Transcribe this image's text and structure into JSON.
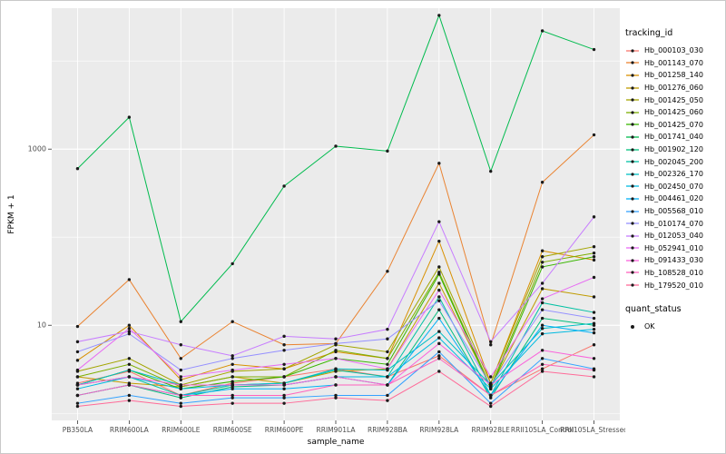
{
  "chart": {
    "legend_title_tracking": "tracking_id",
    "legend_title_quant": "quant_status",
    "quant_status_items": [
      "OK"
    ],
    "quant_point_color": "#1a1a1a"
  },
  "chart_data": {
    "type": "line",
    "title": "",
    "xlabel": "sample_name",
    "ylabel": "FPKM + 1",
    "y_scale": "log10",
    "ylim": [
      1,
      40000
    ],
    "y_ticks": [
      {
        "value": 10,
        "label": "10"
      },
      {
        "value": 1000,
        "label": "1000"
      }
    ],
    "grid": {
      "major_log": [
        1,
        3
      ],
      "minor_log": [
        0,
        2,
        4
      ]
    },
    "legend_position": "right",
    "panel_background": "#EBEBEB",
    "point_color": "#1a1a1a",
    "categories": [
      "PB350LA",
      "RRIM600LA",
      "RRIM600LE",
      "RRIM600SE",
      "RRIM600PE",
      "RRIM901LA",
      "RRIM928BA",
      "RRIM928LA",
      "RRIM928LE",
      "RRII105LA_Control",
      "RRII105LA_Stressed"
    ],
    "series": [
      {
        "name": "Hb_000103_030",
        "color": "#F8766D",
        "quant_status": "OK",
        "values": [
          2.2,
          3.0,
          1.6,
          2.2,
          2.6,
          3.2,
          2.6,
          4.5,
          1.6,
          3.2,
          6.0
        ]
      },
      {
        "name": "Hb_001143_070",
        "color": "#EA8331",
        "quant_status": "OK",
        "values": [
          9.7,
          33,
          4.2,
          11,
          6.0,
          6.2,
          41,
          690,
          6.0,
          420,
          1450
        ]
      },
      {
        "name": "Hb_001258_140",
        "color": "#D89000",
        "quant_status": "OK",
        "values": [
          4.0,
          10,
          2.4,
          3.6,
          3.2,
          5.0,
          4.2,
          90,
          2.2,
          70,
          55
        ]
      },
      {
        "name": "Hb_001276_060",
        "color": "#C09B00",
        "quant_status": "OK",
        "values": [
          2.6,
          2.2,
          2.0,
          2.6,
          2.2,
          3.0,
          3.2,
          30,
          2.0,
          26,
          21
        ]
      },
      {
        "name": "Hb_001425_050",
        "color": "#A3A500",
        "quant_status": "OK",
        "values": [
          3.0,
          4.2,
          2.1,
          3.0,
          3.2,
          6.0,
          5.0,
          46,
          2.2,
          60,
          78
        ]
      },
      {
        "name": "Hb_001425_060",
        "color": "#7CAE00",
        "quant_status": "OK",
        "values": [
          2.6,
          3.6,
          2.0,
          2.6,
          2.6,
          5.2,
          4.2,
          40,
          2.0,
          52,
          66
        ]
      },
      {
        "name": "Hb_001425_070",
        "color": "#39B600",
        "quant_status": "OK",
        "values": [
          2.1,
          3.1,
          1.9,
          2.3,
          2.6,
          4.2,
          3.6,
          38,
          1.9,
          46,
          60
        ]
      },
      {
        "name": "Hb_001741_040",
        "color": "#00BB4E",
        "quant_status": "OK",
        "values": [
          600,
          2300,
          11,
          50,
          380,
          1080,
          950,
          33000,
          560,
          22000,
          13500
        ]
      },
      {
        "name": "Hb_001902_120",
        "color": "#00BF7D",
        "quant_status": "OK",
        "values": [
          1.6,
          2.1,
          1.5,
          2.0,
          2.1,
          2.6,
          2.1,
          15,
          1.5,
          12,
          10
        ]
      },
      {
        "name": "Hb_002045_200",
        "color": "#00C1A3",
        "quant_status": "OK",
        "values": [
          2.1,
          2.6,
          1.6,
          2.1,
          2.2,
          3.1,
          2.6,
          21,
          1.6,
          18,
          14
        ]
      },
      {
        "name": "Hb_002326_170",
        "color": "#00BFC4",
        "quant_status": "OK",
        "values": [
          2.1,
          3.1,
          2.1,
          2.1,
          2.2,
          3.2,
          3.1,
          8.5,
          2.1,
          9.2,
          10.5
        ]
      },
      {
        "name": "Hb_002450_070",
        "color": "#00BAE0",
        "quant_status": "OK",
        "values": [
          1.9,
          2.6,
          1.9,
          2.1,
          2.1,
          2.6,
          2.6,
          7.2,
          1.9,
          8.0,
          9.0
        ]
      },
      {
        "name": "Hb_004461_020",
        "color": "#00B0F6",
        "quant_status": "OK",
        "values": [
          1.6,
          2.1,
          1.6,
          1.9,
          1.9,
          2.1,
          2.1,
          12,
          1.6,
          10,
          8.2
        ]
      },
      {
        "name": "Hb_005568_010",
        "color": "#35A2FF",
        "quant_status": "OK",
        "values": [
          1.3,
          1.6,
          1.3,
          1.5,
          1.5,
          1.6,
          1.6,
          5.0,
          1.3,
          4.2,
          3.2
        ]
      },
      {
        "name": "Hb_010174_070",
        "color": "#9590FF",
        "quant_status": "OK",
        "values": [
          5.0,
          8.0,
          3.1,
          4.2,
          5.2,
          6.2,
          7.0,
          19,
          2.1,
          15,
          12
        ]
      },
      {
        "name": "Hb_012053_040",
        "color": "#C77CFF",
        "quant_status": "OK",
        "values": [
          6.5,
          8.5,
          6.0,
          4.5,
          7.5,
          7.0,
          9.0,
          150,
          6.5,
          30,
          170
        ]
      },
      {
        "name": "Hb_052941_010",
        "color": "#E76BF3",
        "quant_status": "OK",
        "values": [
          3.1,
          9.2,
          2.6,
          3.1,
          3.6,
          4.2,
          3.2,
          25,
          2.6,
          20,
          35
        ]
      },
      {
        "name": "Hb_091433_030",
        "color": "#FA62DB",
        "quant_status": "OK",
        "values": [
          2.1,
          2.6,
          2.1,
          2.1,
          2.1,
          2.6,
          2.1,
          6.2,
          2.1,
          5.2,
          4.2
        ]
      },
      {
        "name": "Hb_108528_010",
        "color": "#FF62BC",
        "quant_status": "OK",
        "values": [
          1.6,
          2.1,
          1.6,
          1.6,
          1.6,
          2.1,
          2.1,
          4.2,
          1.6,
          3.6,
          3.1
        ]
      },
      {
        "name": "Hb_179520_010",
        "color": "#FF6A98",
        "quant_status": "OK",
        "values": [
          1.2,
          1.4,
          1.2,
          1.3,
          1.3,
          1.5,
          1.4,
          3.0,
          1.2,
          3.0,
          2.6
        ]
      }
    ]
  }
}
